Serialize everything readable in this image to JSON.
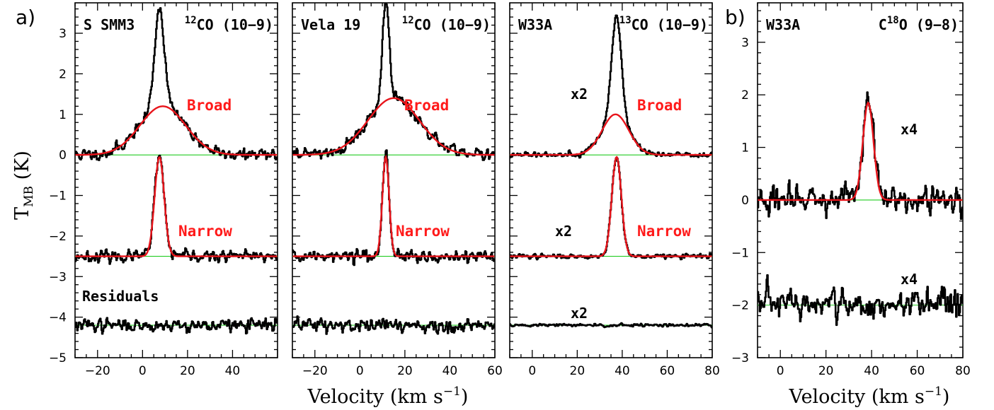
{
  "figure": {
    "panel_a_letter": "a)",
    "panel_b_letter": "b)",
    "ylabel_main": "T",
    "ylabel_sub": "MB",
    "ylabel_unit": " (K)",
    "xlabel_a": "Velocity (km s",
    "xlabel_b": "Velocity (km s",
    "xlabel_sup": "−1",
    "xlabel_close": ")"
  },
  "chart_data": [
    {
      "type": "line",
      "panel": "a",
      "source": "S SMM3",
      "line_iso": "12",
      "line_rest": "CO (10−9)",
      "xlim": [
        -30,
        60
      ],
      "ylim": [
        -5,
        3.75
      ],
      "xticks": [
        -20,
        0,
        20,
        40
      ],
      "xtick_labels": [
        "−20",
        "0",
        "20",
        "40"
      ],
      "yticks": [
        3,
        2,
        1,
        0,
        -1,
        -2,
        -3,
        -4,
        -5
      ],
      "ytick_labels": [
        "3",
        "2",
        "1",
        "0",
        "−1",
        "−2",
        "−3",
        "−4",
        "−5"
      ],
      "broad_label": "Broad",
      "narrow_label": "Narrow",
      "residual_label": "Residuals",
      "offsets": {
        "broad": 0,
        "narrow": -2.5,
        "residual": -4.2
      },
      "broad": {
        "amp": 1.2,
        "center": 9,
        "fwhm": 24
      },
      "narrow": {
        "amp": 2.45,
        "center": 7.5,
        "fwhm": 5
      },
      "noise": 0.07,
      "residual_noise": 0.08
    },
    {
      "type": "line",
      "panel": "a",
      "source": "Vela 19",
      "line_iso": "12",
      "line_rest": "CO (10−9)",
      "xlim": [
        -30,
        60
      ],
      "ylim": [
        -5,
        3.75
      ],
      "xticks": [
        -20,
        0,
        20,
        40,
        60
      ],
      "xtick_labels": [
        "−20",
        "0",
        "20",
        "40",
        "60"
      ],
      "broad_label": "Broad",
      "narrow_label": "Narrow",
      "offsets": {
        "broad": 0,
        "narrow": -2.5,
        "residual": -4.2
      },
      "broad": {
        "amp": 1.4,
        "center": 15,
        "fwhm": 27
      },
      "narrow": {
        "amp": 2.45,
        "center": 11.5,
        "fwhm": 3.5
      },
      "noise": 0.07,
      "residual_noise": 0.09
    },
    {
      "type": "line",
      "panel": "a",
      "source": "W33A",
      "line_iso": "13",
      "line_rest": "CO (10−9)",
      "xlim": [
        -10,
        80
      ],
      "ylim": [
        -5,
        3.75
      ],
      "xticks": [
        0,
        20,
        40,
        60,
        80
      ],
      "xtick_labels": [
        "0",
        "20",
        "40",
        "60",
        "80"
      ],
      "broad_label": "Broad",
      "narrow_label": "Narrow",
      "scale_labels": [
        "x2",
        "x2",
        "x2"
      ],
      "offsets": {
        "broad": 0,
        "narrow": -2.5,
        "residual": -4.2
      },
      "broad": {
        "amp": 1.0,
        "center": 37,
        "fwhm": 14
      },
      "narrow": {
        "amp": 2.45,
        "center": 37.5,
        "fwhm": 5
      },
      "noise": 0.03,
      "residual_noise": 0.02
    },
    {
      "type": "line",
      "panel": "b",
      "source": "W33A",
      "line_iso": "18",
      "line_pre": "C",
      "line_rest": "O (9−8)",
      "xlim": [
        -10,
        80
      ],
      "ylim": [
        -3,
        3.75
      ],
      "xticks": [
        0,
        20,
        40,
        60,
        80
      ],
      "xtick_labels": [
        "0",
        "20",
        "40",
        "60",
        "80"
      ],
      "yticks": [
        3,
        2,
        1,
        0,
        -1,
        -2,
        -3
      ],
      "ytick_labels": [
        "3",
        "2",
        "1",
        "0",
        "−1",
        "−2",
        "−3"
      ],
      "scale_labels": [
        "x4",
        "x4"
      ],
      "offsets": {
        "main": 0,
        "residual": -2.0
      },
      "single": {
        "amp": 1.85,
        "center": 38.5,
        "fwhm": 5.5
      },
      "noise": 0.13,
      "residual_noise": 0.15
    }
  ]
}
